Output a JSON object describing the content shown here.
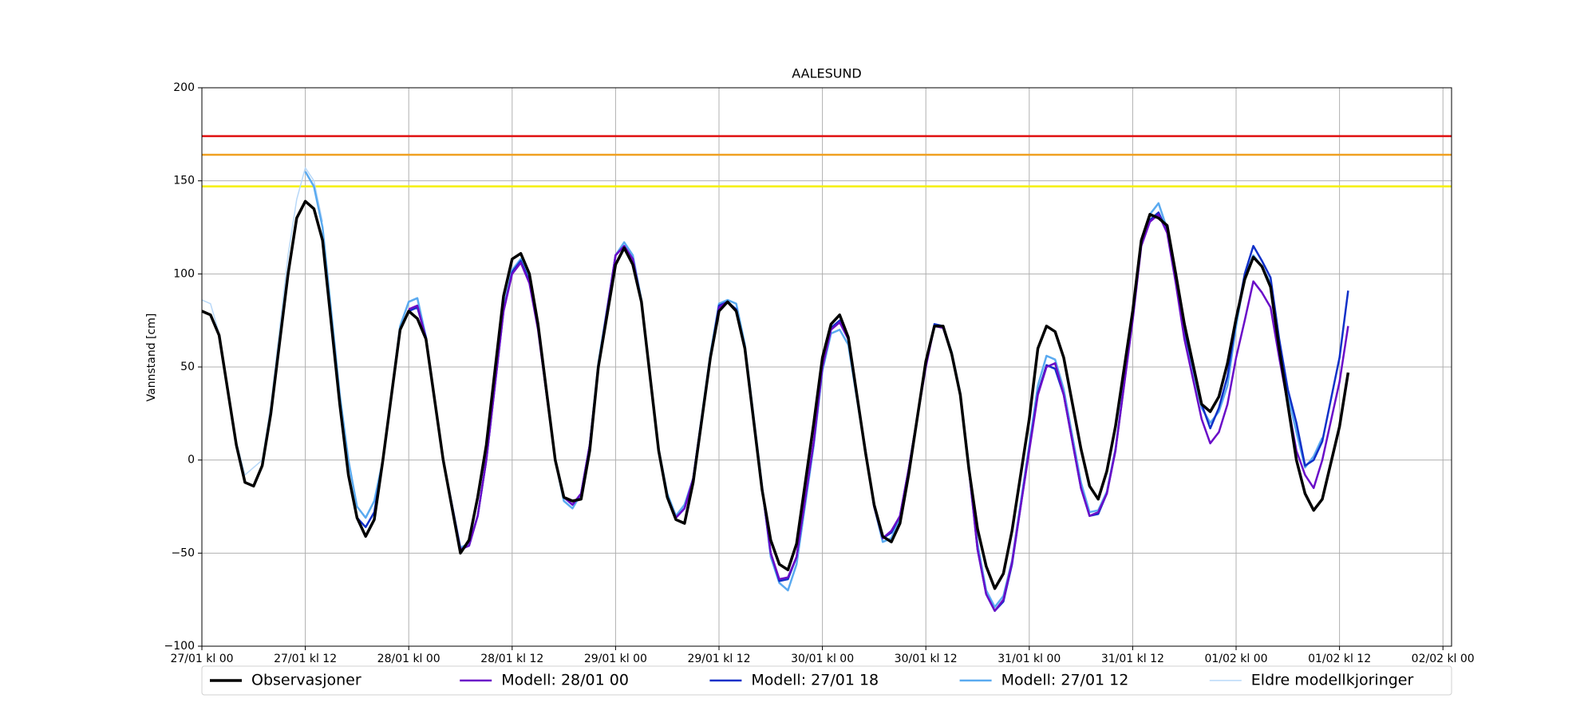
{
  "chart_data": {
    "type": "line",
    "title": "AALESUND",
    "ylabel": "Vannstand [cm]",
    "xlim": [
      0,
      145
    ],
    "xticks": [
      {
        "value": 0,
        "label": "27/01 kl 00"
      },
      {
        "value": 12,
        "label": "27/01 kl 12"
      },
      {
        "value": 24,
        "label": "28/01 kl 00"
      },
      {
        "value": 36,
        "label": "28/01 kl 12"
      },
      {
        "value": 48,
        "label": "29/01 kl 00"
      },
      {
        "value": 60,
        "label": "29/01 kl 12"
      },
      {
        "value": 72,
        "label": "30/01 kl 00"
      },
      {
        "value": 84,
        "label": "30/01 kl 12"
      },
      {
        "value": 96,
        "label": "31/01 kl 00"
      },
      {
        "value": 108,
        "label": "31/01 kl 12"
      },
      {
        "value": 120,
        "label": "01/02 kl 00"
      },
      {
        "value": 132,
        "label": "01/02 kl 12"
      },
      {
        "value": 144,
        "label": "02/02 kl 00"
      }
    ],
    "ylim": [
      -100,
      200
    ],
    "yticks": [
      {
        "value": -100,
        "label": "−100"
      },
      {
        "value": -50,
        "label": "−50"
      },
      0,
      50,
      100,
      150,
      200
    ],
    "grid": true,
    "thresholds": [
      {
        "value": 174,
        "color": "#e01010"
      },
      {
        "value": 164,
        "color": "#f0a020"
      },
      {
        "value": 147,
        "color": "#f5f000"
      }
    ],
    "series": [
      {
        "name": "Eldre modellkjoringer",
        "color": "#b8d8f8",
        "width": 1.5,
        "x": [
          0,
          1,
          2,
          4,
          5,
          6,
          7,
          8,
          10,
          11,
          12,
          13,
          14
        ],
        "values": [
          86,
          84,
          68,
          10,
          -8,
          -4,
          0,
          30,
          110,
          140,
          157,
          150,
          128
        ]
      },
      {
        "name": "Modell: 27/01 12",
        "color": "#5aaaf0",
        "width": 2.5,
        "x": [
          12,
          13,
          14,
          16,
          17,
          18,
          19,
          20,
          21,
          23,
          24,
          25,
          26,
          28,
          30,
          31,
          32,
          33,
          35,
          36,
          37,
          38,
          39,
          41,
          42,
          43,
          44,
          45,
          46,
          48,
          49,
          50,
          51,
          53,
          54,
          55,
          56,
          57,
          59,
          60,
          61,
          62,
          63,
          65,
          66,
          67,
          68,
          69,
          71,
          72,
          73,
          74,
          75,
          77,
          78,
          79,
          80,
          81,
          82,
          84,
          85,
          86,
          87,
          88,
          89,
          90,
          91,
          92,
          93,
          94,
          96,
          97,
          98,
          99,
          100,
          102,
          103,
          104,
          105,
          106,
          108,
          109,
          110,
          111,
          112,
          113,
          114,
          116,
          117,
          118,
          119,
          120,
          121,
          122,
          123,
          124,
          125,
          126,
          127,
          128,
          129,
          130
        ],
        "values": [
          155,
          147,
          125,
          35,
          0,
          -25,
          -31,
          -22,
          0,
          72,
          85,
          87,
          66,
          0,
          -47,
          -45,
          -30,
          0,
          82,
          102,
          108,
          97,
          72,
          0,
          -22,
          -26,
          -18,
          8,
          52,
          110,
          117,
          110,
          86,
          6,
          -18,
          -30,
          -24,
          -10,
          57,
          84,
          86,
          84,
          62,
          -14,
          -52,
          -66,
          -70,
          -56,
          8,
          48,
          68,
          70,
          62,
          4,
          -25,
          -44,
          -42,
          -31,
          -6,
          52,
          73,
          72,
          58,
          36,
          -3,
          -45,
          -70,
          -79,
          -73,
          -54,
          8,
          40,
          56,
          54,
          38,
          -12,
          -28,
          -27,
          -17,
          6,
          76,
          116,
          132,
          138,
          124,
          96,
          66,
          28,
          20,
          26,
          40,
          72,
          98,
          110,
          104,
          95,
          62,
          35,
          15,
          -4,
          2,
          12
        ]
      },
      {
        "name": "Modell: 27/01 18",
        "color": "#1030c8",
        "width": 2.5,
        "x": [
          18,
          19,
          20,
          21,
          23,
          24,
          25,
          26,
          28,
          30,
          31,
          32,
          33,
          35,
          36,
          37,
          38,
          39,
          41,
          42,
          43,
          44,
          45,
          46,
          48,
          49,
          50,
          51,
          53,
          54,
          55,
          56,
          57,
          59,
          60,
          61,
          62,
          63,
          65,
          66,
          67,
          68,
          69,
          71,
          72,
          73,
          74,
          75,
          77,
          78,
          79,
          80,
          81,
          82,
          84,
          85,
          86,
          87,
          88,
          89,
          90,
          91,
          92,
          93,
          94,
          96,
          97,
          98,
          99,
          100,
          102,
          103,
          104,
          105,
          106,
          108,
          109,
          110,
          111,
          112,
          113,
          114,
          116,
          117,
          118,
          119,
          120,
          121,
          122,
          123,
          124,
          125,
          126,
          127,
          128,
          129,
          130,
          132,
          133
        ],
        "values": [
          -31,
          -36,
          -28,
          0,
          70,
          80,
          82,
          66,
          0,
          -48,
          -46,
          -30,
          0,
          80,
          101,
          107,
          96,
          71,
          0,
          -20,
          -24,
          -18,
          8,
          50,
          110,
          115,
          108,
          85,
          5,
          -20,
          -31,
          -26,
          -10,
          55,
          83,
          85,
          81,
          60,
          -15,
          -50,
          -65,
          -64,
          -52,
          10,
          50,
          71,
          75,
          65,
          5,
          -25,
          -42,
          -39,
          -30,
          -5,
          51,
          73,
          72,
          57,
          35,
          -5,
          -48,
          -72,
          -81,
          -76,
          -56,
          6,
          36,
          51,
          49,
          35,
          -15,
          -30,
          -29,
          -18,
          5,
          76,
          116,
          129,
          133,
          123,
          96,
          70,
          30,
          17,
          28,
          45,
          75,
          100,
          115,
          107,
          98,
          65,
          38,
          20,
          -3,
          0,
          10,
          55,
          91
        ]
      },
      {
        "name": "Modell: 28/01 00",
        "color": "#6a0dc8",
        "width": 2.5,
        "x": [
          24,
          25,
          26,
          28,
          30,
          31,
          32,
          33,
          35,
          36,
          37,
          38,
          39,
          41,
          42,
          43,
          44,
          45,
          46,
          48,
          49,
          50,
          51,
          53,
          54,
          55,
          56,
          57,
          59,
          60,
          61,
          62,
          63,
          65,
          66,
          67,
          68,
          69,
          71,
          72,
          73,
          74,
          75,
          77,
          78,
          79,
          80,
          81,
          82,
          84,
          85,
          86,
          87,
          88,
          89,
          90,
          91,
          92,
          93,
          94,
          96,
          97,
          98,
          99,
          100,
          102,
          103,
          104,
          105,
          106,
          108,
          109,
          110,
          111,
          112,
          113,
          114,
          116,
          117,
          118,
          119,
          120,
          121,
          122,
          123,
          124,
          125,
          126,
          127,
          128,
          129,
          130,
          132,
          133
        ],
        "values": [
          81,
          83,
          65,
          0,
          -48,
          -46,
          -30,
          0,
          80,
          100,
          106,
          95,
          70,
          0,
          -20,
          -24,
          -18,
          8,
          50,
          110,
          115,
          108,
          85,
          5,
          -20,
          -31,
          -26,
          -10,
          55,
          82,
          85,
          80,
          60,
          -15,
          -50,
          -64,
          -63,
          -52,
          10,
          50,
          70,
          74,
          65,
          5,
          -25,
          -42,
          -38,
          -30,
          -5,
          50,
          72,
          71,
          57,
          35,
          -5,
          -48,
          -72,
          -81,
          -75,
          -55,
          5,
          35,
          50,
          52,
          35,
          -15,
          -30,
          -28,
          -18,
          5,
          75,
          115,
          128,
          132,
          122,
          95,
          65,
          22,
          9,
          15,
          30,
          55,
          75,
          96,
          90,
          82,
          55,
          30,
          5,
          -8,
          -15,
          0,
          42,
          72
        ]
      },
      {
        "name": "Observasjoner",
        "color": "#000000",
        "width": 3.5,
        "x": [
          0,
          1,
          2,
          4,
          5,
          6,
          7,
          8,
          10,
          11,
          12,
          13,
          14,
          16,
          17,
          18,
          19,
          20,
          21,
          23,
          24,
          25,
          26,
          28,
          30,
          31,
          32,
          33,
          35,
          36,
          37,
          38,
          39,
          41,
          42,
          43,
          44,
          45,
          46,
          48,
          49,
          50,
          51,
          53,
          54,
          55,
          56,
          57,
          59,
          60,
          61,
          62,
          63,
          65,
          66,
          67,
          68,
          69,
          71,
          72,
          73,
          74,
          75,
          77,
          78,
          79,
          80,
          81,
          82,
          84,
          85,
          86,
          87,
          88,
          89,
          90,
          91,
          92,
          93,
          94,
          96,
          97,
          98,
          99,
          100,
          102,
          103,
          104,
          105,
          106,
          108,
          109,
          110,
          111,
          112,
          113,
          114,
          116,
          117,
          118,
          119,
          120,
          121,
          122,
          123,
          124,
          125,
          126,
          127,
          128,
          129,
          130,
          132,
          133
        ],
        "values": [
          80,
          78,
          67,
          8,
          -12,
          -14,
          -3,
          25,
          100,
          130,
          139,
          135,
          118,
          30,
          -8,
          -31,
          -41,
          -32,
          0,
          70,
          80,
          76,
          65,
          0,
          -50,
          -43,
          -20,
          8,
          88,
          108,
          111,
          100,
          73,
          0,
          -20,
          -22,
          -21,
          5,
          50,
          105,
          114,
          105,
          85,
          5,
          -20,
          -32,
          -34,
          -12,
          55,
          80,
          85,
          80,
          60,
          -16,
          -43,
          -56,
          -59,
          -45,
          20,
          55,
          73,
          78,
          66,
          4,
          -24,
          -41,
          -44,
          -34,
          -8,
          53,
          72,
          72,
          57,
          35,
          -5,
          -37,
          -57,
          -69,
          -61,
          -38,
          22,
          60,
          72,
          69,
          55,
          6,
          -14,
          -21,
          -6,
          18,
          80,
          118,
          132,
          130,
          126,
          100,
          73,
          30,
          26,
          34,
          52,
          76,
          97,
          109,
          104,
          93,
          60,
          30,
          0,
          -18,
          -27,
          -21,
          18,
          47
        ]
      }
    ],
    "legend": [
      "Observasjoner",
      "Modell: 28/01 00",
      "Modell: 27/01 18",
      "Modell: 27/01 12",
      "Eldre modellkjoringer"
    ]
  }
}
